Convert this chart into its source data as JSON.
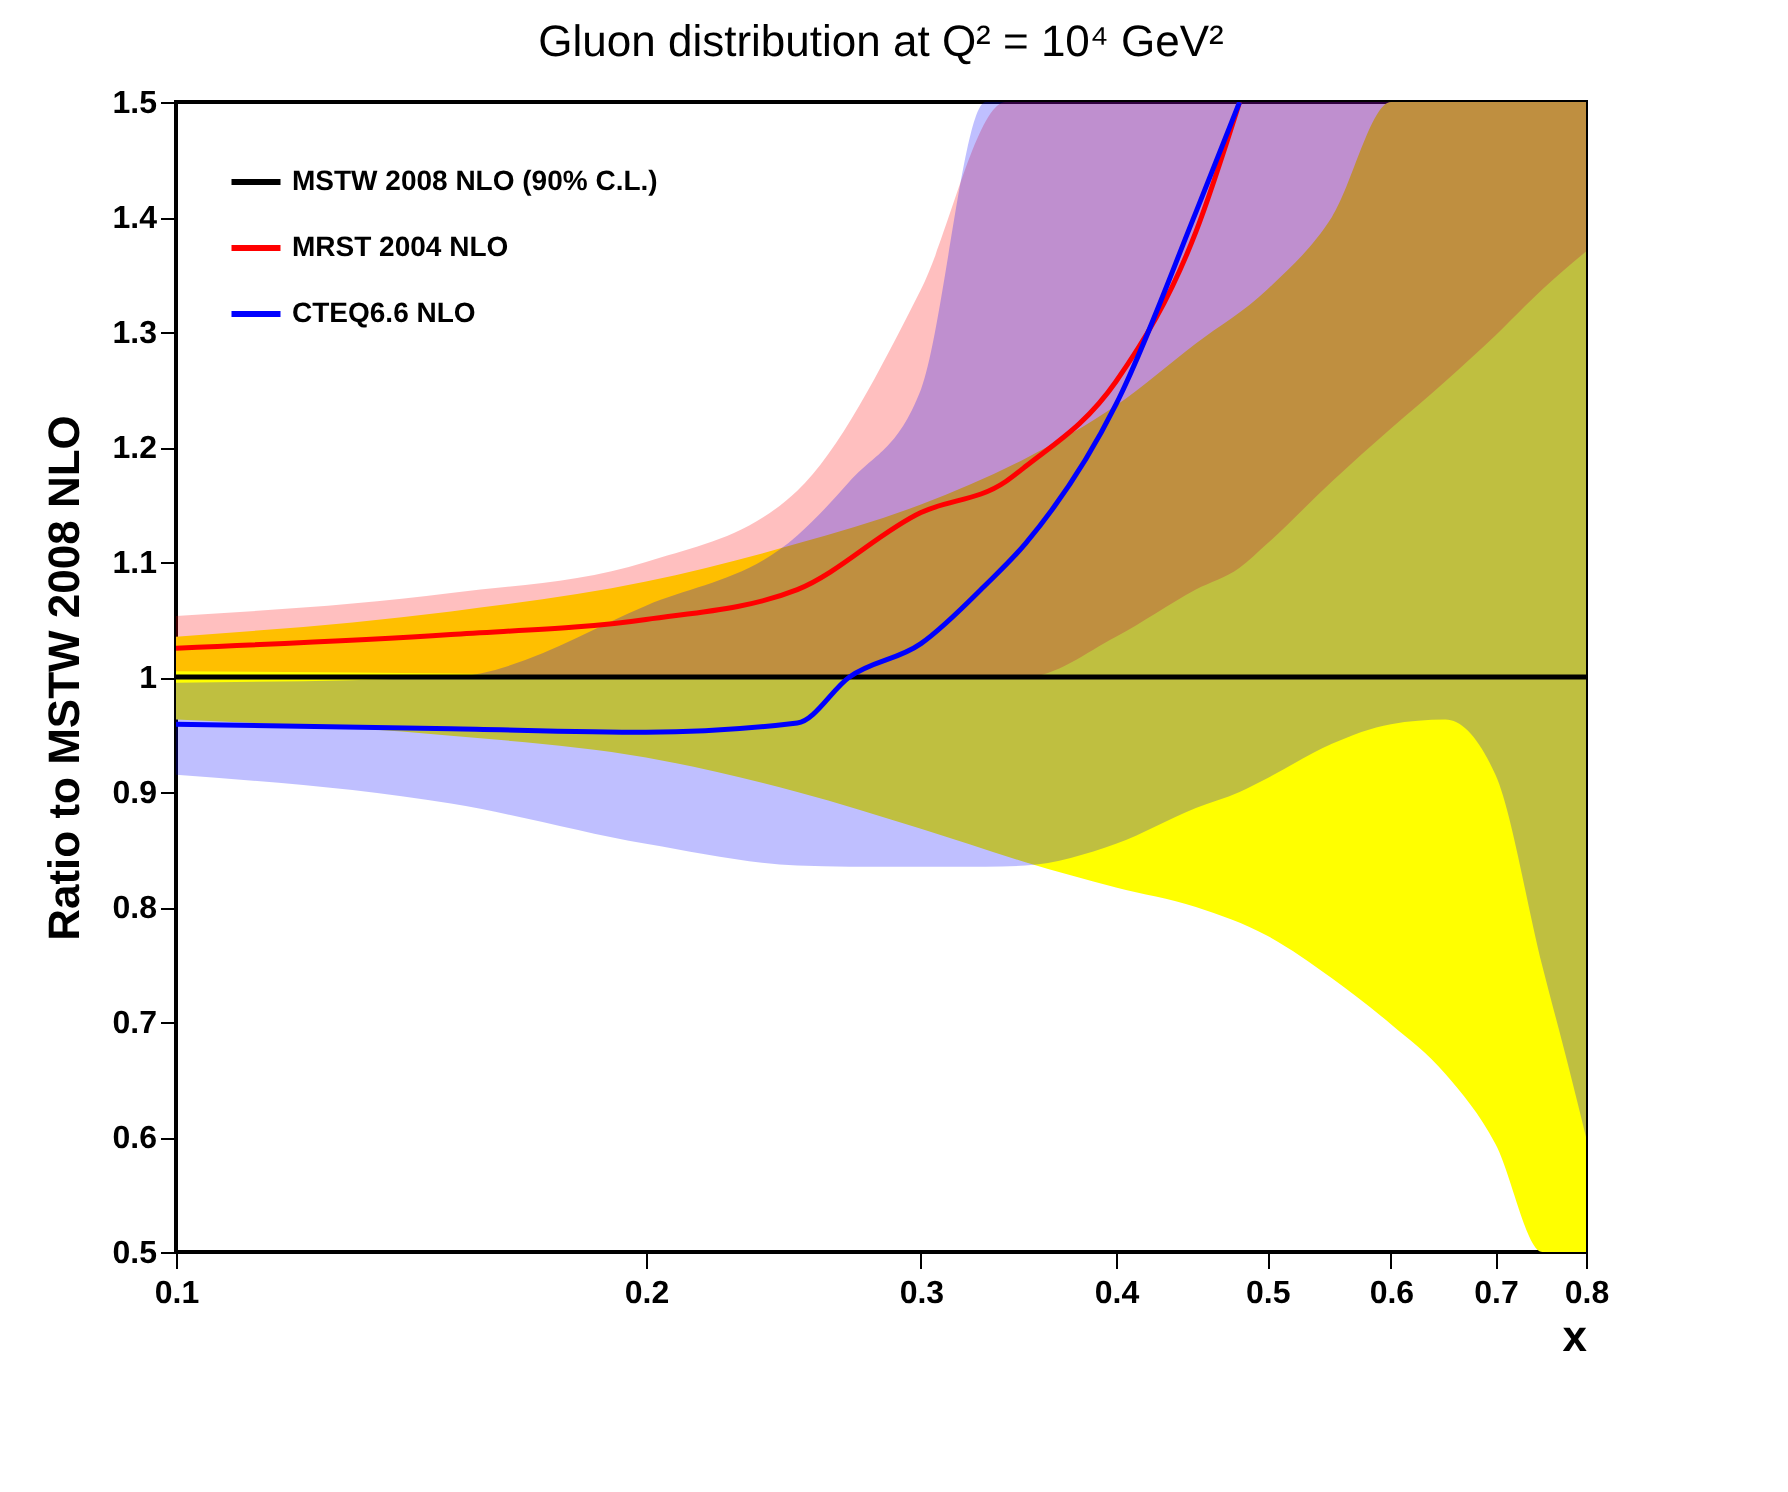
{
  "chart_data": {
    "type": "line",
    "title": "Gluon distribution at Q² = 10⁴ GeV²",
    "xlabel": "x",
    "ylabel": "Ratio to MSTW 2008 NLO",
    "log": "x",
    "grid": false,
    "legend": "top left",
    "marker": "none",
    "line_style": "solid",
    "xlim": [
      0.1,
      0.8
    ],
    "xticks": [
      0.1,
      0.2,
      0.3,
      0.4,
      0.5,
      0.6,
      0.7,
      0.8
    ],
    "ylim": [
      0.5,
      1.5
    ],
    "yticks": [
      0.5,
      0.6,
      0.7,
      0.8,
      0.9,
      1,
      1.1,
      1.2,
      1.3,
      1.4,
      1.5
    ],
    "series": [
      {
        "name": "MSTW 2008 NLO (90% C.L.)",
        "color": "#000000",
        "x": [
          0.1,
          0.15,
          0.2,
          0.25,
          0.3,
          0.35,
          0.4,
          0.45,
          0.5,
          0.55,
          0.6,
          0.65,
          0.7,
          0.75,
          0.8
        ],
        "values": [
          1,
          1,
          1,
          1,
          1,
          1,
          1,
          1,
          1,
          1,
          1,
          1,
          1,
          1,
          1
        ],
        "upper": [
          1.035,
          1.057,
          1.083,
          1.116,
          1.15,
          1.19,
          1.236,
          1.29,
          1.337,
          1.4,
          1.5,
          1.5,
          1.5,
          1.5,
          1.5
        ],
        "lower": [
          0.963,
          0.949,
          0.93,
          0.9,
          0.868,
          0.839,
          0.817,
          0.8,
          0.775,
          0.738,
          0.698,
          0.655,
          0.594,
          0.5,
          0.5
        ]
      },
      {
        "name": "MRST 2004 NLO",
        "color": "#ff0000",
        "x": [
          0.1,
          0.15,
          0.2,
          0.25,
          0.3,
          0.34,
          0.35,
          0.4,
          0.45,
          0.48,
          0.5,
          0.55,
          0.6,
          0.65,
          0.7,
          0.75,
          0.8
        ],
        "values": [
          1.025,
          1.037,
          1.05,
          1.076,
          1.143,
          1.17,
          1.183,
          1.257,
          1.387,
          1.5,
          null,
          null,
          null,
          null,
          null,
          null,
          null
        ],
        "upper": [
          1.053,
          1.073,
          1.1,
          1.162,
          1.337,
          1.5,
          1.5,
          1.5,
          1.5,
          1.5,
          1.5,
          1.5,
          1.5,
          1.5,
          1.5,
          1.5,
          1.5
        ],
        "lower": [
          1.005,
          1.003,
          1,
          1,
          1,
          1,
          1,
          1.035,
          1.076,
          1.095,
          1.116,
          1.17,
          1.216,
          1.257,
          1.297,
          1.337,
          1.37
        ]
      },
      {
        "name": "CTEQ6.6 NLO",
        "color": "#0000ff",
        "x": [
          0.1,
          0.15,
          0.2,
          0.25,
          0.27,
          0.3,
          0.33,
          0.35,
          0.4,
          0.45,
          0.48,
          0.5,
          0.55,
          0.6,
          0.65,
          0.7,
          0.75,
          0.78,
          0.8
        ],
        "values": [
          0.959,
          0.955,
          0.952,
          0.96,
          1,
          1.029,
          1.08,
          1.116,
          1.237,
          1.404,
          1.5,
          null,
          null,
          null,
          null,
          null,
          null,
          null,
          null
        ],
        "upper": [
          0.995,
          1,
          1.062,
          1.123,
          1.17,
          1.25,
          1.5,
          1.5,
          1.5,
          1.5,
          1.5,
          1.5,
          1.5,
          1.5,
          1.5,
          1.5,
          1.5,
          1.5,
          1.5
        ],
        "lower": [
          0.915,
          0.89,
          0.855,
          0.836,
          0.835,
          0.835,
          0.835,
          0.836,
          0.855,
          0.886,
          0.9,
          0.912,
          0.942,
          0.959,
          0.963,
          0.915,
          0.749,
          0.66,
          0.6
        ]
      }
    ]
  }
}
